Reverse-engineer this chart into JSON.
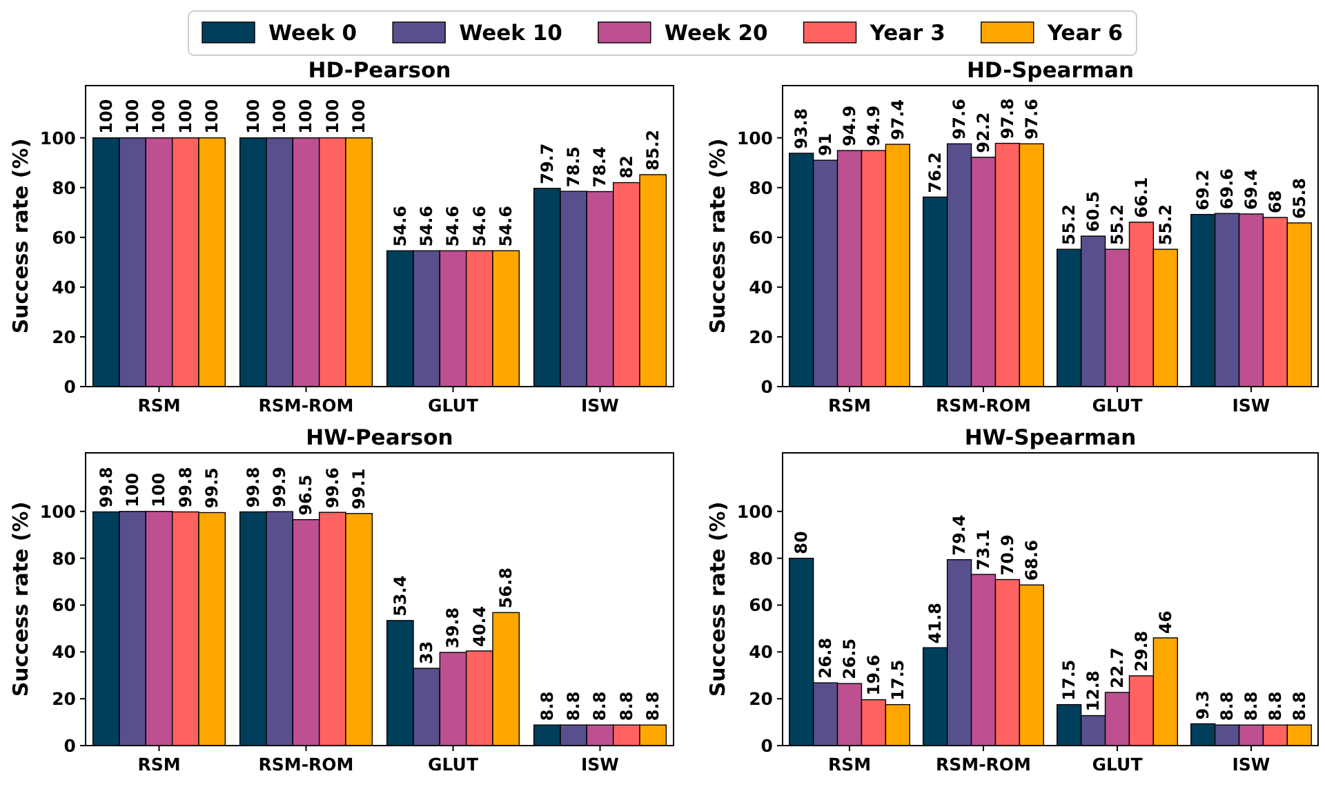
{
  "chart_data": [
    {
      "type": "bar",
      "title": "HD-Pearson",
      "ylabel": "Success rate (%)",
      "categories": [
        "RSM",
        "RSM-ROM",
        "GLUT",
        "ISW"
      ],
      "ylim": [
        0,
        121
      ],
      "yticks": [
        0,
        20,
        40,
        60,
        80,
        100
      ],
      "data_labels": true,
      "legend": "top",
      "series": [
        {
          "name": "Week 0",
          "color": "#003f5c",
          "values": [
            100,
            100,
            54.6,
            79.7
          ]
        },
        {
          "name": "Week 10",
          "color": "#58508d",
          "values": [
            100,
            100,
            54.6,
            78.5
          ]
        },
        {
          "name": "Week 20",
          "color": "#bc5090",
          "values": [
            100,
            100,
            54.6,
            78.4
          ]
        },
        {
          "name": "Year 3",
          "color": "#ff6361",
          "values": [
            100,
            100,
            54.6,
            82
          ]
        },
        {
          "name": "Year 6",
          "color": "#ffa600",
          "values": [
            100,
            100,
            54.6,
            85.2
          ]
        }
      ]
    },
    {
      "type": "bar",
      "title": "HD-Spearman",
      "ylabel": "Success rate (%)",
      "categories": [
        "RSM",
        "RSM-ROM",
        "GLUT",
        "ISW"
      ],
      "ylim": [
        0,
        121
      ],
      "yticks": [
        0,
        20,
        40,
        60,
        80,
        100
      ],
      "data_labels": true,
      "series": [
        {
          "color": "#003f5c",
          "values": [
            93.8,
            76.2,
            55.2,
            69.2
          ]
        },
        {
          "color": "#58508d",
          "values": [
            91,
            97.6,
            60.5,
            69.6
          ]
        },
        {
          "color": "#bc5090",
          "values": [
            94.9,
            92.2,
            55.2,
            69.4
          ]
        },
        {
          "color": "#ff6361",
          "values": [
            94.9,
            97.8,
            66.1,
            68
          ]
        },
        {
          "color": "#ffa600",
          "values": [
            97.4,
            97.6,
            55.2,
            65.8
          ]
        }
      ]
    },
    {
      "type": "bar",
      "title": "HW-Pearson",
      "ylabel": "Success rate (%)",
      "categories": [
        "RSM",
        "RSM-ROM",
        "GLUT",
        "ISW"
      ],
      "ylim": [
        0,
        125
      ],
      "yticks": [
        0,
        20,
        40,
        60,
        80,
        100
      ],
      "data_labels": true,
      "series": [
        {
          "color": "#003f5c",
          "values": [
            99.8,
            99.8,
            53.4,
            8.8
          ]
        },
        {
          "color": "#58508d",
          "values": [
            100,
            99.9,
            33,
            8.8
          ]
        },
        {
          "color": "#bc5090",
          "values": [
            100,
            96.5,
            39.8,
            8.8
          ]
        },
        {
          "color": "#ff6361",
          "values": [
            99.8,
            99.6,
            40.4,
            8.8
          ]
        },
        {
          "color": "#ffa600",
          "values": [
            99.5,
            99.1,
            56.8,
            8.8
          ]
        }
      ]
    },
    {
      "type": "bar",
      "title": "HW-Spearman",
      "ylabel": "Success rate (%)",
      "categories": [
        "RSM",
        "RSM-ROM",
        "GLUT",
        "ISW"
      ],
      "ylim": [
        0,
        125
      ],
      "yticks": [
        0,
        20,
        40,
        60,
        80,
        100
      ],
      "data_labels": true,
      "series": [
        {
          "color": "#003f5c",
          "values": [
            80,
            41.8,
            17.5,
            9.3
          ]
        },
        {
          "color": "#58508d",
          "values": [
            26.8,
            79.4,
            12.8,
            8.8
          ]
        },
        {
          "color": "#bc5090",
          "values": [
            26.5,
            73.1,
            22.7,
            8.8
          ]
        },
        {
          "color": "#ff6361",
          "values": [
            19.6,
            70.9,
            29.8,
            8.8
          ]
        },
        {
          "color": "#ffa600",
          "values": [
            17.5,
            68.6,
            46,
            8.8
          ]
        }
      ]
    }
  ]
}
